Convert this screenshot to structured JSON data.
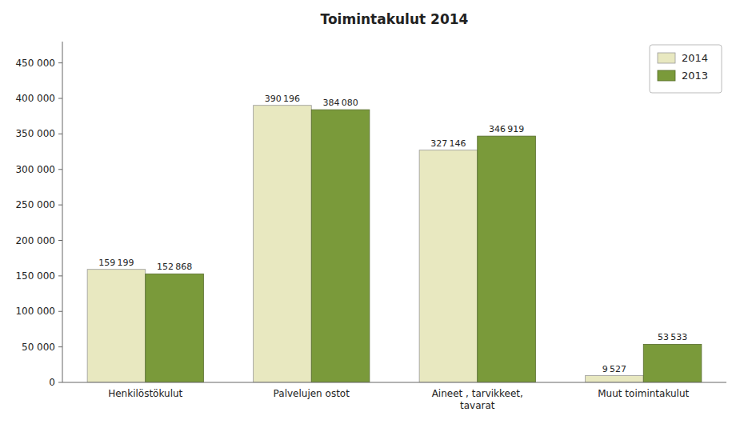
{
  "chart_data": {
    "type": "bar",
    "title": "Toimintakulut 2014",
    "categories": [
      "Henkilöstökulut",
      "Palvelujen ostot",
      "Aineet , tarvikkeet,\ntavarat",
      "Muut toimintakulut"
    ],
    "series": [
      {
        "name": "2014",
        "color": "#e8e8c0",
        "values": [
          159199,
          390196,
          327146,
          9527
        ],
        "value_labels": [
          "159 199",
          "390 196",
          "327 146",
          "9 527"
        ]
      },
      {
        "name": "2013",
        "color": "#7a9a3a",
        "values": [
          152868,
          384080,
          346919,
          53533
        ],
        "value_labels": [
          "152 868",
          "384 080",
          "346 919",
          "53 533"
        ]
      }
    ],
    "ylim": [
      0,
      480000
    ],
    "yticks": [
      0,
      {
        "value": 50000,
        "label": "50 000"
      },
      {
        "value": 100000,
        "label": "100 000"
      },
      {
        "value": 150000,
        "label": "150 000"
      },
      {
        "value": 200000,
        "label": "200 000"
      },
      {
        "value": 250000,
        "label": "250 000"
      },
      {
        "value": 300000,
        "label": "300 000"
      },
      {
        "value": 350000,
        "label": "350 000"
      },
      {
        "value": 400000,
        "label": "400 000"
      },
      {
        "value": 450000,
        "label": "450 000"
      }
    ],
    "grid": false,
    "legend": "upper right",
    "data_labels": true
  }
}
